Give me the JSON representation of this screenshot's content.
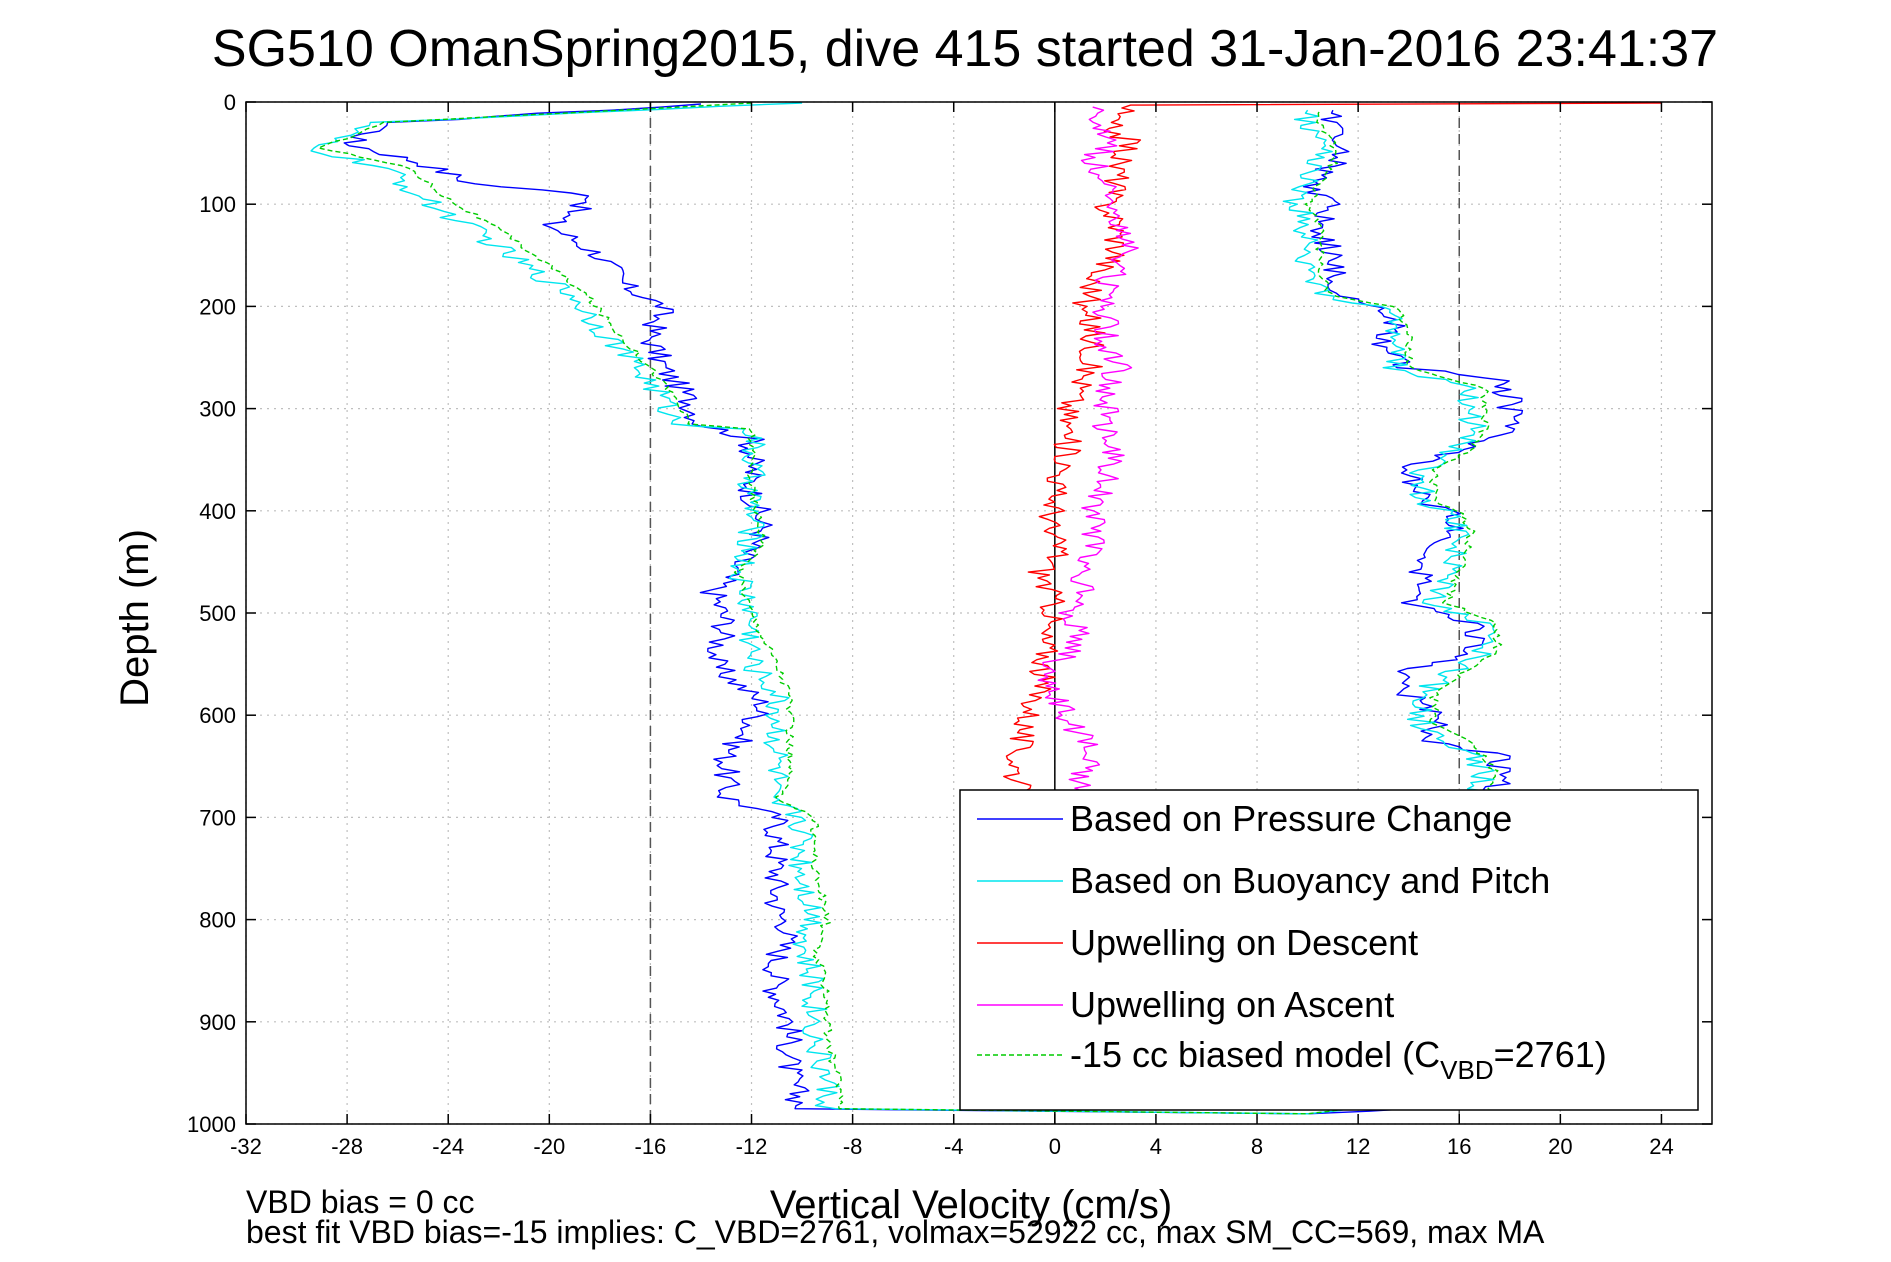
{
  "chart_data": {
    "type": "line",
    "title": "SG510 OmanSpring2015, dive 415 started 31-Jan-2016 23:41:37",
    "xlabel": "Vertical Velocity (cm/s)",
    "ylabel": "Depth (m)",
    "xlim": [
      -32,
      26
    ],
    "ylim": [
      1000,
      0
    ],
    "y_reversed": true,
    "grid": true,
    "legend_placement": "bottom-right",
    "xticks": [
      -32,
      -28,
      -24,
      -20,
      -16,
      -12,
      -8,
      -4,
      0,
      4,
      8,
      12,
      16,
      20,
      24
    ],
    "yticks": [
      0,
      100,
      200,
      300,
      400,
      500,
      600,
      700,
      800,
      900,
      1000
    ],
    "reference_lines": [
      {
        "x": -16,
        "style": "dashed"
      },
      {
        "x": 16,
        "style": "dashed"
      },
      {
        "x": 0,
        "style": "solid"
      }
    ],
    "series": [
      {
        "name": "Based on Pressure Change",
        "color": "#0000ff",
        "style": "solid",
        "points": [
          [
            -14,
            2
          ],
          [
            -26,
            20
          ],
          [
            -28,
            40
          ],
          [
            -25,
            60
          ],
          [
            -23,
            80
          ],
          [
            -18,
            92
          ],
          [
            -20,
            120
          ],
          [
            -18,
            150
          ],
          [
            -17,
            180
          ],
          [
            -15.5,
            200
          ],
          [
            -16,
            230
          ],
          [
            -15.5,
            260
          ],
          [
            -14.5,
            290
          ],
          [
            -14,
            315
          ],
          [
            -12,
            330
          ],
          [
            -12,
            380
          ],
          [
            -11.5,
            420
          ],
          [
            -12.5,
            450
          ],
          [
            -13.5,
            480
          ],
          [
            -13,
            510
          ],
          [
            -13.5,
            550
          ],
          [
            -11.5,
            590
          ],
          [
            -12,
            610
          ],
          [
            -13,
            640
          ],
          [
            -13,
            680
          ],
          [
            -11,
            700
          ],
          [
            -11,
            750
          ],
          [
            -11,
            790
          ],
          [
            -10.5,
            810
          ],
          [
            -11,
            840
          ],
          [
            -11,
            870
          ],
          [
            -10.5,
            900
          ],
          [
            -10.5,
            950
          ],
          [
            -10,
            985
          ],
          [
            10,
            990
          ],
          [
            14,
            985
          ],
          [
            15,
            960
          ],
          [
            14,
            940
          ],
          [
            14,
            900
          ],
          [
            14.5,
            870
          ],
          [
            14,
            840
          ],
          [
            14,
            800
          ],
          [
            17,
            770
          ],
          [
            17,
            730
          ],
          [
            17,
            700
          ],
          [
            17.5,
            670
          ],
          [
            17.5,
            640
          ],
          [
            15,
            625
          ],
          [
            15,
            600
          ],
          [
            14,
            580
          ],
          [
            13.5,
            560
          ],
          [
            16.5,
            540
          ],
          [
            16.5,
            510
          ],
          [
            14,
            490
          ],
          [
            14.5,
            460
          ],
          [
            15,
            440
          ],
          [
            16,
            420
          ],
          [
            16,
            400
          ],
          [
            14.5,
            390
          ],
          [
            14,
            360
          ],
          [
            16,
            340
          ],
          [
            18,
            320
          ],
          [
            18,
            290
          ],
          [
            17.5,
            270
          ],
          [
            14,
            260
          ],
          [
            13,
            240
          ],
          [
            13.5,
            210
          ],
          [
            11.5,
            190
          ],
          [
            11,
            170
          ],
          [
            11,
            150
          ],
          [
            10.5,
            120
          ],
          [
            11,
            100
          ],
          [
            10,
            80
          ],
          [
            11,
            60
          ],
          [
            11.5,
            40
          ],
          [
            11,
            20
          ],
          [
            11,
            8
          ]
        ]
      },
      {
        "name": "Based on Buoyancy and Pitch",
        "color": "#00e5ee",
        "style": "solid",
        "points": [
          [
            -10,
            1
          ],
          [
            -27,
            20
          ],
          [
            -29.5,
            45
          ],
          [
            -26.5,
            65
          ],
          [
            -25,
            95
          ],
          [
            -23,
            125
          ],
          [
            -21,
            160
          ],
          [
            -19,
            190
          ],
          [
            -18,
            220
          ],
          [
            -16.5,
            260
          ],
          [
            -15.5,
            290
          ],
          [
            -15,
            315
          ],
          [
            -12,
            320
          ],
          [
            -12,
            380
          ],
          [
            -12,
            430
          ],
          [
            -12.5,
            460
          ],
          [
            -12,
            500
          ],
          [
            -12,
            550
          ],
          [
            -11,
            580
          ],
          [
            -11,
            600
          ],
          [
            -11,
            630
          ],
          [
            -11,
            660
          ],
          [
            -11.5,
            680
          ],
          [
            -10,
            700
          ],
          [
            -10,
            750
          ],
          [
            -9.5,
            800
          ],
          [
            -10,
            830
          ],
          [
            -9.5,
            870
          ],
          [
            -9.5,
            920
          ],
          [
            -9,
            960
          ],
          [
            -9,
            985
          ],
          [
            10,
            990
          ],
          [
            13,
            980
          ],
          [
            13.5,
            950
          ],
          [
            13,
            900
          ],
          [
            13.5,
            850
          ],
          [
            13,
            810
          ],
          [
            16.5,
            790
          ],
          [
            16.5,
            730
          ],
          [
            16.5,
            690
          ],
          [
            17,
            660
          ],
          [
            16.5,
            640
          ],
          [
            15.5,
            620
          ],
          [
            14.5,
            610
          ],
          [
            14.5,
            580
          ],
          [
            15.5,
            560
          ],
          [
            17,
            540
          ],
          [
            17,
            510
          ],
          [
            15,
            490
          ],
          [
            15.5,
            460
          ],
          [
            16,
            420
          ],
          [
            15.5,
            400
          ],
          [
            14.5,
            390
          ],
          [
            14.5,
            360
          ],
          [
            16,
            340
          ],
          [
            16.5,
            320
          ],
          [
            16.5,
            280
          ],
          [
            13.5,
            260
          ],
          [
            13.5,
            230
          ],
          [
            13,
            200
          ],
          [
            10.5,
            190
          ],
          [
            10,
            170
          ],
          [
            10,
            150
          ],
          [
            10,
            120
          ],
          [
            9.5,
            100
          ],
          [
            10,
            80
          ],
          [
            10.5,
            60
          ],
          [
            10.5,
            40
          ],
          [
            10,
            20
          ],
          [
            10,
            8
          ]
        ]
      },
      {
        "name": "Upwelling on Descent",
        "color": "#ff0000",
        "style": "solid",
        "points": [
          [
            24,
            1
          ],
          [
            3,
            3
          ],
          [
            2,
            20
          ],
          [
            3,
            40
          ],
          [
            2.5,
            60
          ],
          [
            2.5,
            80
          ],
          [
            2,
            100
          ],
          [
            2.5,
            120
          ],
          [
            2.5,
            150
          ],
          [
            1.5,
            170
          ],
          [
            1.5,
            190
          ],
          [
            1,
            200
          ],
          [
            1.5,
            220
          ],
          [
            1.5,
            250
          ],
          [
            1,
            280
          ],
          [
            0.5,
            300
          ],
          [
            0.5,
            320
          ],
          [
            0.5,
            350
          ],
          [
            0,
            380
          ],
          [
            0,
            400
          ],
          [
            -0.3,
            420
          ],
          [
            0.3,
            440
          ],
          [
            -0.5,
            460
          ],
          [
            -0.2,
            480
          ],
          [
            0,
            500
          ],
          [
            -0.5,
            520
          ],
          [
            -0.3,
            540
          ],
          [
            -0.5,
            560
          ],
          [
            -0.7,
            580
          ],
          [
            -1,
            600
          ],
          [
            -1.3,
            620
          ],
          [
            -1.5,
            640
          ],
          [
            -1.5,
            660
          ],
          [
            -1.5,
            680
          ],
          [
            -1,
            700
          ],
          [
            -1,
            750
          ],
          [
            -0.5,
            800
          ],
          [
            -0.5,
            850
          ],
          [
            -0.5,
            900
          ],
          [
            -0.5,
            950
          ],
          [
            -0.5,
            985
          ]
        ]
      },
      {
        "name": "Upwelling on Ascent",
        "color": "#ff00ff",
        "style": "solid",
        "points": [
          [
            0.5,
            985
          ],
          [
            1,
            950
          ],
          [
            1,
            900
          ],
          [
            1,
            850
          ],
          [
            1,
            800
          ],
          [
            1,
            750
          ],
          [
            1,
            700
          ],
          [
            1.5,
            680
          ],
          [
            1,
            660
          ],
          [
            1.5,
            640
          ],
          [
            1,
            620
          ],
          [
            0.5,
            600
          ],
          [
            0,
            580
          ],
          [
            -0.5,
            560
          ],
          [
            0.5,
            540
          ],
          [
            1,
            520
          ],
          [
            0.5,
            500
          ],
          [
            1,
            480
          ],
          [
            1,
            460
          ],
          [
            1.5,
            440
          ],
          [
            1.5,
            420
          ],
          [
            1.5,
            400
          ],
          [
            2,
            380
          ],
          [
            2,
            360
          ],
          [
            2.5,
            340
          ],
          [
            2,
            320
          ],
          [
            2,
            300
          ],
          [
            2,
            280
          ],
          [
            2.5,
            260
          ],
          [
            2,
            240
          ],
          [
            2,
            220
          ],
          [
            2,
            200
          ],
          [
            2,
            180
          ],
          [
            2.5,
            160
          ],
          [
            3,
            140
          ],
          [
            2.5,
            120
          ],
          [
            2.5,
            100
          ],
          [
            2,
            80
          ],
          [
            1.5,
            60
          ],
          [
            2,
            40
          ],
          [
            2,
            20
          ],
          [
            1.5,
            5
          ]
        ]
      },
      {
        "name": "-15 cc biased model (C_VBD=2761)",
        "color": "#00cc00",
        "style": "dashed",
        "points": [
          [
            -12,
            1
          ],
          [
            -26.5,
            20
          ],
          [
            -29,
            45
          ],
          [
            -25.5,
            65
          ],
          [
            -24,
            95
          ],
          [
            -22,
            125
          ],
          [
            -20,
            160
          ],
          [
            -18.5,
            190
          ],
          [
            -17.5,
            220
          ],
          [
            -16,
            260
          ],
          [
            -15,
            290
          ],
          [
            -14.5,
            315
          ],
          [
            -12,
            320
          ],
          [
            -12,
            380
          ],
          [
            -11.5,
            430
          ],
          [
            -12.5,
            460
          ],
          [
            -12,
            500
          ],
          [
            -11,
            550
          ],
          [
            -10.5,
            580
          ],
          [
            -10.5,
            600
          ],
          [
            -10.5,
            630
          ],
          [
            -10.5,
            660
          ],
          [
            -11,
            680
          ],
          [
            -9.5,
            700
          ],
          [
            -9.5,
            750
          ],
          [
            -9,
            800
          ],
          [
            -9.5,
            830
          ],
          [
            -9,
            870
          ],
          [
            -9,
            920
          ],
          [
            -8.5,
            960
          ],
          [
            -8.5,
            985
          ],
          [
            10,
            990
          ],
          [
            13.5,
            980
          ],
          [
            14,
            950
          ],
          [
            13.5,
            900
          ],
          [
            14,
            850
          ],
          [
            13.5,
            810
          ],
          [
            17,
            790
          ],
          [
            17,
            730
          ],
          [
            17,
            690
          ],
          [
            17.5,
            660
          ],
          [
            17,
            640
          ],
          [
            16,
            620
          ],
          [
            15,
            610
          ],
          [
            15,
            580
          ],
          [
            16,
            560
          ],
          [
            17.5,
            540
          ],
          [
            17.5,
            510
          ],
          [
            15.5,
            490
          ],
          [
            16,
            460
          ],
          [
            16.5,
            420
          ],
          [
            16,
            400
          ],
          [
            15,
            390
          ],
          [
            15,
            360
          ],
          [
            16.5,
            340
          ],
          [
            17,
            320
          ],
          [
            17,
            280
          ],
          [
            14,
            260
          ],
          [
            14,
            230
          ],
          [
            13.5,
            200
          ],
          [
            11,
            190
          ],
          [
            10.5,
            170
          ],
          [
            10.5,
            150
          ],
          [
            10.5,
            120
          ],
          [
            10,
            100
          ],
          [
            10.5,
            80
          ],
          [
            11,
            60
          ],
          [
            11,
            40
          ],
          [
            10.5,
            20
          ],
          [
            10.5,
            8
          ]
        ]
      }
    ],
    "legend": [
      {
        "label": "Based on Pressure Change",
        "color": "#0000ff",
        "style": "solid"
      },
      {
        "label": "Based on Buoyancy and Pitch",
        "color": "#00e5ee",
        "style": "solid"
      },
      {
        "label": "Upwelling on Descent",
        "color": "#ff0000",
        "style": "solid"
      },
      {
        "label": "Upwelling on Ascent",
        "color": "#ff00ff",
        "style": "solid"
      },
      {
        "label": "-15 cc biased model (C",
        "sub": "VBD",
        "suffix": "=2761)",
        "color": "#00cc00",
        "style": "dashed"
      }
    ]
  },
  "annotations": {
    "line1": "VBD bias = 0 cc",
    "line2": "best fit VBD bias=-15 implies: C_VBD=2761, volmax=52922 cc, max SM_CC=569, max MA"
  }
}
